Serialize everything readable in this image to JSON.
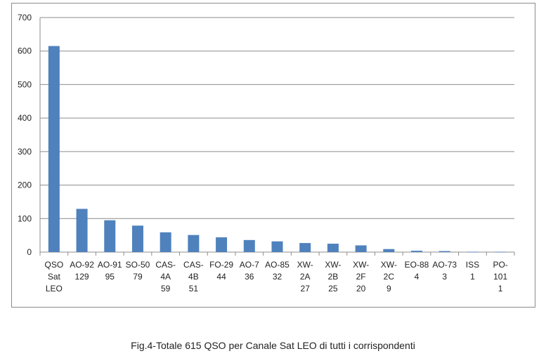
{
  "caption": "Fig.4-Totale 615 QSO per Canale Sat LEO di tutti i corrispondenti",
  "chart_data": {
    "type": "bar",
    "title": "",
    "xlabel": "",
    "ylabel": "",
    "ylim": [
      0,
      700
    ],
    "yticks": [
      0,
      100,
      200,
      300,
      400,
      500,
      600,
      700
    ],
    "grid": true,
    "legend": "none",
    "bar_color": "#4f81bd",
    "categories": [
      {
        "label": [
          "QSO",
          "Sat",
          "LEO"
        ],
        "value": 615
      },
      {
        "label": [
          "AO-92",
          "129"
        ],
        "value": 129
      },
      {
        "label": [
          "AO-91",
          "95"
        ],
        "value": 95
      },
      {
        "label": [
          "SO-50",
          "79"
        ],
        "value": 79
      },
      {
        "label": [
          "CAS-",
          "4A",
          "59"
        ],
        "value": 59
      },
      {
        "label": [
          "CAS-",
          "4B",
          "51"
        ],
        "value": 51
      },
      {
        "label": [
          "FO-29",
          "44"
        ],
        "value": 44
      },
      {
        "label": [
          "AO-7",
          "36"
        ],
        "value": 36
      },
      {
        "label": [
          "AO-85",
          "32"
        ],
        "value": 32
      },
      {
        "label": [
          "XW-",
          "2A",
          "27"
        ],
        "value": 27
      },
      {
        "label": [
          "XW-",
          "2B",
          "25"
        ],
        "value": 25
      },
      {
        "label": [
          "XW-",
          "2F",
          "20"
        ],
        "value": 20
      },
      {
        "label": [
          "XW-",
          "2C",
          "9"
        ],
        "value": 9
      },
      {
        "label": [
          "EO-88",
          "4"
        ],
        "value": 4
      },
      {
        "label": [
          "AO-73",
          "3"
        ],
        "value": 3
      },
      {
        "label": [
          "ISS",
          "1"
        ],
        "value": 1
      },
      {
        "label": [
          "PO-",
          "101",
          "1"
        ],
        "value": 1
      }
    ]
  }
}
